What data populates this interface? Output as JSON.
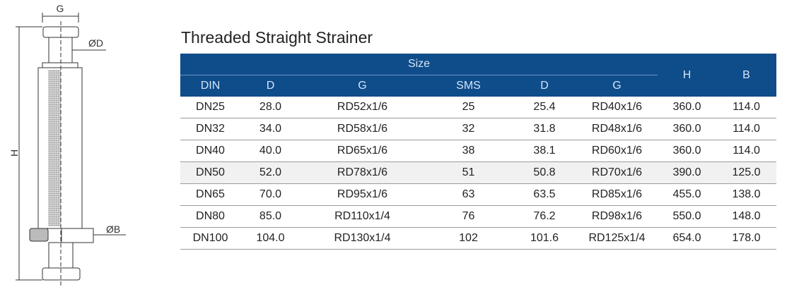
{
  "drawing": {
    "labels": {
      "g": "G",
      "d": "ØD",
      "h": "H",
      "b": "ØB"
    }
  },
  "title": "Threaded Straight Strainer",
  "table": {
    "group_header": "Size",
    "h_header": "H",
    "b_header": "B",
    "sub_headers": [
      "DIN",
      "D",
      "G",
      "SMS",
      "D",
      "G"
    ],
    "rows": [
      [
        "DN25",
        "28.0",
        "RD52x1/6",
        "25",
        "25.4",
        "RD40x1/6",
        "360.0",
        "114.0"
      ],
      [
        "DN32",
        "34.0",
        "RD58x1/6",
        "32",
        "31.8",
        "RD48x1/6",
        "360.0",
        "114.0"
      ],
      [
        "DN40",
        "40.0",
        "RD65x1/6",
        "38",
        "38.1",
        "RD60x1/6",
        "360.0",
        "114.0"
      ],
      [
        "DN50",
        "52.0",
        "RD78x1/6",
        "51",
        "50.8",
        "RD70x1/6",
        "390.0",
        "125.0"
      ],
      [
        "DN65",
        "70.0",
        "RD95x1/6",
        "63",
        "63.5",
        "RD85x1/6",
        "455.0",
        "138.0"
      ],
      [
        "DN80",
        "85.0",
        "RD110x1/4",
        "76",
        "76.2",
        "RD98x1/6",
        "550.0",
        "148.0"
      ],
      [
        "DN100",
        "104.0",
        "RD130x1/4",
        "102",
        "101.6",
        "RD125x1/4",
        "654.0",
        "178.0"
      ]
    ],
    "colors": {
      "header_bg": "#0f4c8a",
      "header_text": "#d6e6f7",
      "shaded_row": "#f1f1f1"
    }
  }
}
